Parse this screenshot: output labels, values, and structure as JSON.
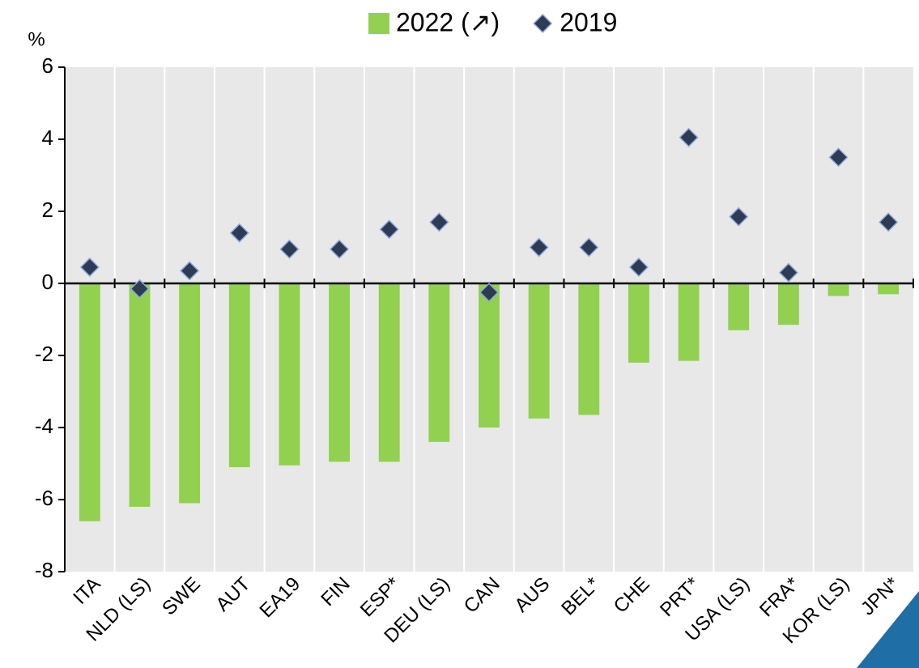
{
  "chart_data": {
    "type": "bar_marker",
    "y_label": "%",
    "categories": [
      "ITA",
      "NLD (LS)",
      "SWE",
      "AUT",
      "EA19",
      "FIN",
      "ESP*",
      "DEU (LS)",
      "CAN",
      "AUS",
      "BEL*",
      "CHE",
      "PRT*",
      "USA (LS)",
      "FRA*",
      "KOR (LS)",
      "JPN*"
    ],
    "series": [
      {
        "name": "2022 (↗)",
        "color": "#92d050",
        "kind": "bar",
        "values": [
          -6.6,
          -6.2,
          -6.1,
          -5.1,
          -5.05,
          -4.95,
          -4.95,
          -4.4,
          -4.0,
          -3.75,
          -3.65,
          -2.2,
          -2.15,
          -1.3,
          -1.15,
          -0.35,
          -0.3
        ]
      },
      {
        "name": "2019",
        "color": "#2e3b55",
        "kind": "marker",
        "values": [
          0.45,
          -0.15,
          0.35,
          1.4,
          0.95,
          0.95,
          1.5,
          1.7,
          -0.25,
          1.0,
          1.0,
          0.45,
          4.05,
          1.85,
          0.3,
          3.5,
          1.7
        ]
      }
    ],
    "ylim": [
      -8,
      6
    ],
    "yticks": [
      -8,
      -6,
      -4,
      -2,
      0,
      2,
      4,
      6
    ]
  }
}
